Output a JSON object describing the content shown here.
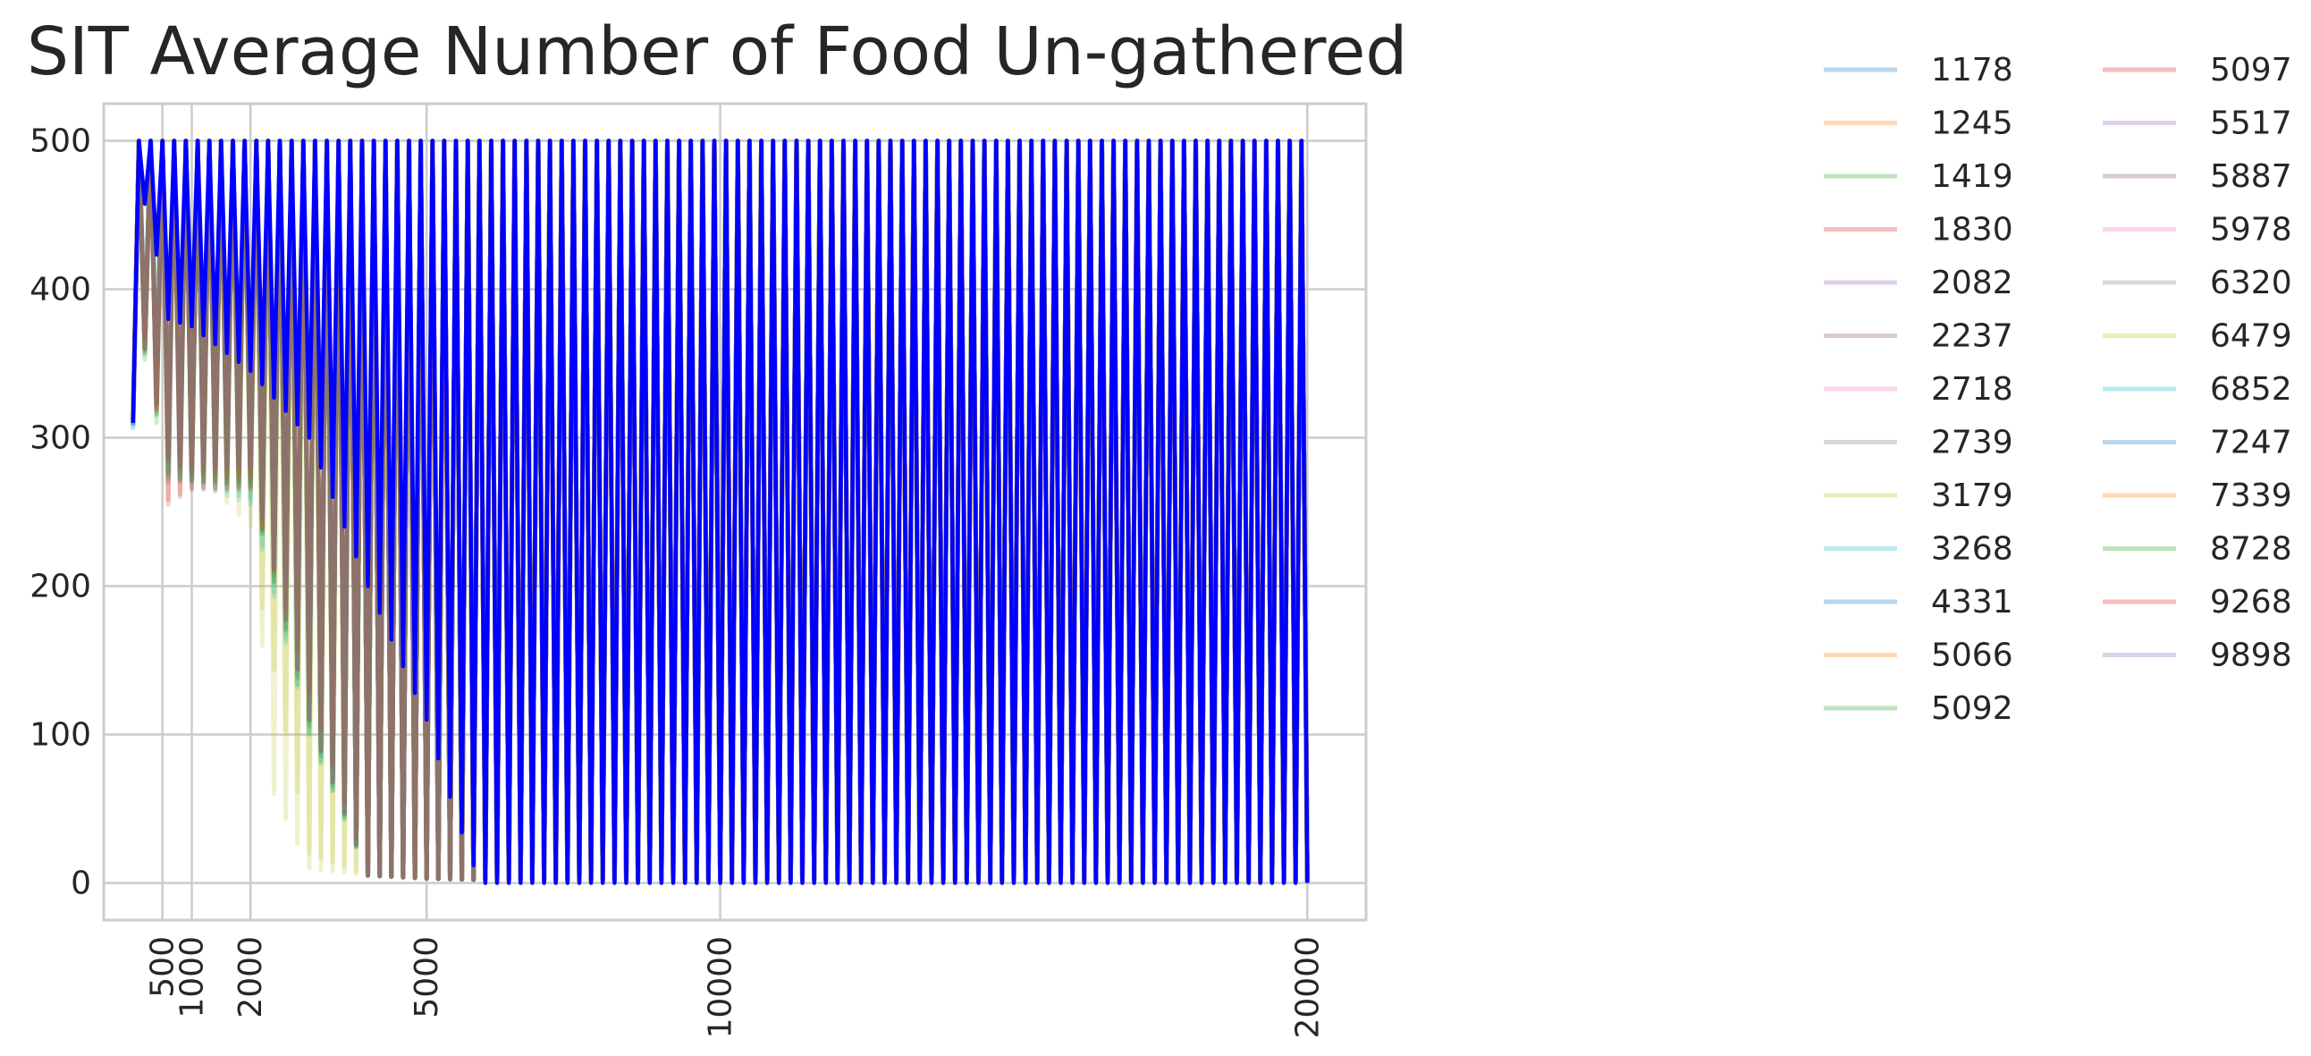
{
  "chart_data": {
    "type": "line",
    "title": "SIT Average Number of Food Un-gathered",
    "xlabel": "",
    "ylabel": "",
    "xlim": [
      -500,
      21000
    ],
    "ylim": [
      -25,
      525
    ],
    "x_ticks": [
      500,
      1000,
      2000,
      5000,
      10000,
      20000
    ],
    "x_tick_labels": [
      "500",
      "1000",
      "2000",
      "5000",
      "10000",
      "20000"
    ],
    "y_ticks": [
      0,
      100,
      200,
      300,
      400,
      500
    ],
    "y_tick_labels": [
      "0",
      "100",
      "200",
      "300",
      "400",
      "500"
    ],
    "grid": true,
    "legend_position": "outside-right",
    "legend_columns": 2,
    "oscillation_period": 200,
    "series_colors": [
      "#1f77b4",
      "#ff7f0e",
      "#2ca02c",
      "#d62728",
      "#9467bd",
      "#8c564b",
      "#e377c2",
      "#7f7f7f",
      "#bcbd22",
      "#17becf"
    ],
    "series": [
      {
        "name": "1178",
        "x": [
          0,
          100,
          300,
          600,
          1000,
          2000,
          3000,
          4000,
          5000,
          6000,
          10000,
          20000
        ],
        "low": [
          310,
          380,
          340,
          290,
          280,
          280,
          110,
          5,
          3,
          2,
          2,
          1
        ],
        "high": [
          310,
          500,
          500,
          500,
          500,
          500,
          500,
          500,
          500,
          500,
          500,
          500
        ]
      },
      {
        "name": "1245",
        "x": [
          0,
          100,
          300,
          600,
          1000,
          2000,
          3000,
          4000,
          5000,
          6000,
          10000,
          20000
        ],
        "low": [
          312,
          385,
          345,
          295,
          285,
          275,
          120,
          6,
          3,
          2,
          2,
          1
        ],
        "high": [
          312,
          500,
          500,
          500,
          500,
          500,
          500,
          500,
          500,
          500,
          500,
          500
        ]
      },
      {
        "name": "1419",
        "x": [
          0,
          100,
          300,
          600,
          1000,
          2000,
          3000,
          4000,
          5000,
          6000,
          10000,
          20000
        ],
        "low": [
          308,
          375,
          330,
          270,
          270,
          270,
          100,
          5,
          3,
          2,
          2,
          1
        ],
        "high": [
          308,
          500,
          500,
          500,
          500,
          500,
          500,
          500,
          500,
          500,
          500,
          500
        ]
      },
      {
        "name": "1830",
        "x": [
          0,
          100,
          300,
          600,
          1000,
          2000,
          3000,
          4000,
          5000,
          6000,
          10000,
          20000
        ],
        "low": [
          315,
          390,
          350,
          255,
          265,
          265,
          130,
          6,
          3,
          2,
          2,
          1
        ],
        "high": [
          315,
          500,
          500,
          500,
          500,
          500,
          500,
          500,
          500,
          500,
          500,
          500
        ]
      },
      {
        "name": "2082",
        "x": [
          0,
          100,
          300,
          600,
          1000,
          2000,
          3000,
          4000,
          5000,
          6000,
          10000,
          20000
        ],
        "low": [
          310,
          380,
          340,
          290,
          280,
          280,
          110,
          5,
          3,
          2,
          2,
          1
        ],
        "high": [
          310,
          500,
          500,
          500,
          500,
          500,
          500,
          500,
          500,
          500,
          500,
          500
        ]
      },
      {
        "name": "2237",
        "x": [
          0,
          100,
          300,
          600,
          1000,
          2000,
          3000,
          4000,
          5000,
          6000,
          10000,
          20000
        ],
        "low": [
          311,
          382,
          342,
          285,
          278,
          272,
          115,
          5,
          3,
          2,
          2,
          1
        ],
        "high": [
          311,
          500,
          500,
          500,
          500,
          500,
          500,
          500,
          500,
          500,
          500,
          500
        ]
      },
      {
        "name": "2718",
        "x": [
          0,
          100,
          300,
          600,
          1000,
          2000,
          3000,
          4000,
          5000,
          6000,
          10000,
          20000
        ],
        "low": [
          309,
          378,
          338,
          280,
          275,
          270,
          105,
          5,
          3,
          2,
          2,
          1
        ],
        "high": [
          309,
          500,
          500,
          500,
          500,
          500,
          500,
          500,
          500,
          500,
          500,
          500
        ]
      },
      {
        "name": "2739",
        "x": [
          0,
          100,
          300,
          600,
          1000,
          2000,
          3000,
          4000,
          5000,
          6000,
          10000,
          20000
        ],
        "low": [
          313,
          383,
          343,
          288,
          279,
          276,
          118,
          6,
          3,
          2,
          2,
          1
        ],
        "high": [
          313,
          500,
          500,
          500,
          500,
          500,
          500,
          500,
          500,
          500,
          500,
          500
        ]
      },
      {
        "name": "3179",
        "x": [
          0,
          100,
          300,
          600,
          1000,
          2000,
          2400,
          3000,
          4000,
          5000,
          6000,
          10000,
          20000
        ],
        "low": [
          310,
          380,
          340,
          290,
          280,
          260,
          60,
          10,
          5,
          3,
          2,
          2,
          1
        ],
        "high": [
          310,
          500,
          500,
          500,
          500,
          500,
          500,
          500,
          500,
          500,
          500,
          500,
          500
        ]
      },
      {
        "name": "3268",
        "x": [
          0,
          100,
          300,
          600,
          1000,
          2000,
          3000,
          4000,
          5000,
          6000,
          10000,
          20000
        ],
        "low": [
          305,
          370,
          390,
          275,
          270,
          255,
          100,
          5,
          3,
          2,
          2,
          1
        ],
        "high": [
          305,
          500,
          500,
          500,
          500,
          500,
          500,
          500,
          500,
          500,
          500,
          500
        ]
      },
      {
        "name": "4331",
        "x": [
          0,
          100,
          300,
          600,
          1000,
          2000,
          3000,
          4000,
          5000,
          6000,
          10000,
          20000
        ],
        "low": [
          310,
          380,
          340,
          290,
          280,
          280,
          110,
          5,
          3,
          2,
          2,
          1
        ],
        "high": [
          310,
          500,
          500,
          500,
          500,
          500,
          500,
          500,
          500,
          500,
          500,
          500
        ]
      },
      {
        "name": "5066",
        "x": [
          0,
          100,
          300,
          600,
          1000,
          2000,
          3000,
          4000,
          5000,
          6000,
          10000,
          20000
        ],
        "low": [
          312,
          384,
          344,
          292,
          282,
          278,
          112,
          5,
          3,
          2,
          2,
          1
        ],
        "high": [
          312,
          500,
          500,
          500,
          500,
          500,
          500,
          500,
          500,
          500,
          500,
          500
        ]
      },
      {
        "name": "5092",
        "x": [
          0,
          100,
          300,
          600,
          1000,
          2000,
          3000,
          4000,
          5000,
          6000,
          10000,
          20000
        ],
        "low": [
          308,
          376,
          336,
          275,
          272,
          268,
          108,
          5,
          3,
          2,
          2,
          1
        ],
        "high": [
          308,
          500,
          500,
          500,
          500,
          500,
          500,
          500,
          500,
          500,
          500,
          500
        ]
      },
      {
        "name": "5097",
        "x": [
          0,
          100,
          300,
          600,
          1000,
          2000,
          3000,
          4000,
          5000,
          6000,
          10000,
          20000
        ],
        "low": [
          310,
          380,
          340,
          290,
          280,
          280,
          110,
          5,
          3,
          2,
          2,
          1
        ],
        "high": [
          310,
          500,
          500,
          500,
          500,
          500,
          500,
          500,
          500,
          500,
          500,
          500
        ]
      },
      {
        "name": "5517",
        "x": [
          0,
          100,
          300,
          600,
          1000,
          2000,
          3000,
          4000,
          5000,
          6000,
          10000,
          20000
        ],
        "low": [
          311,
          381,
          341,
          286,
          277,
          273,
          114,
          5,
          3,
          2,
          2,
          1
        ],
        "high": [
          311,
          500,
          500,
          500,
          500,
          500,
          500,
          500,
          500,
          500,
          500,
          500
        ]
      },
      {
        "name": "5887",
        "x": [
          0,
          100,
          300,
          600,
          1000,
          2000,
          3000,
          4000,
          5000,
          6000,
          10000,
          20000
        ],
        "low": [
          309,
          379,
          339,
          284,
          276,
          271,
          112,
          5,
          3,
          2,
          2,
          1
        ],
        "high": [
          309,
          500,
          500,
          500,
          500,
          500,
          500,
          500,
          500,
          500,
          500,
          500
        ]
      },
      {
        "name": "5978",
        "x": [
          0,
          100,
          300,
          600,
          1000,
          2000,
          3000,
          4000,
          5000,
          6000,
          10000,
          20000
        ],
        "low": [
          310,
          380,
          340,
          290,
          280,
          280,
          110,
          5,
          3,
          2,
          2,
          1
        ],
        "high": [
          310,
          500,
          500,
          500,
          500,
          500,
          500,
          500,
          500,
          500,
          500,
          500
        ]
      },
      {
        "name": "6320",
        "x": [
          0,
          100,
          300,
          600,
          1000,
          2000,
          3000,
          4000,
          5000,
          6000,
          10000,
          20000
        ],
        "low": [
          312,
          383,
          343,
          289,
          279,
          277,
          116,
          5,
          3,
          2,
          2,
          1
        ],
        "high": [
          312,
          500,
          500,
          500,
          500,
          500,
          500,
          500,
          500,
          500,
          500,
          500
        ]
      },
      {
        "name": "6479",
        "x": [
          0,
          100,
          300,
          600,
          1000,
          2000,
          2200,
          3000,
          4000,
          5000,
          6000,
          10000,
          20000
        ],
        "low": [
          310,
          380,
          340,
          290,
          280,
          240,
          185,
          20,
          5,
          3,
          2,
          2,
          1
        ],
        "high": [
          310,
          500,
          500,
          500,
          500,
          500,
          500,
          500,
          500,
          500,
          500,
          500,
          500
        ]
      },
      {
        "name": "6852",
        "x": [
          0,
          100,
          300,
          600,
          1000,
          2000,
          3000,
          4000,
          5000,
          6000,
          10000,
          20000
        ],
        "low": [
          306,
          372,
          392,
          278,
          272,
          258,
          102,
          5,
          3,
          2,
          2,
          1
        ],
        "high": [
          306,
          500,
          500,
          500,
          500,
          500,
          500,
          500,
          500,
          500,
          500,
          500
        ]
      },
      {
        "name": "7247",
        "x": [
          0,
          100,
          300,
          600,
          1000,
          2000,
          3000,
          4000,
          5000,
          6000,
          10000,
          20000
        ],
        "low": [
          310,
          380,
          340,
          290,
          280,
          280,
          110,
          5,
          3,
          2,
          2,
          1
        ],
        "high": [
          310,
          500,
          500,
          500,
          500,
          500,
          500,
          500,
          500,
          500,
          500,
          500
        ]
      },
      {
        "name": "7339",
        "x": [
          0,
          100,
          300,
          600,
          1000,
          2000,
          3000,
          4000,
          5000,
          6000,
          10000,
          20000
        ],
        "low": [
          311,
          382,
          342,
          287,
          278,
          274,
          113,
          5,
          3,
          2,
          2,
          1
        ],
        "high": [
          311,
          500,
          500,
          500,
          500,
          500,
          500,
          500,
          500,
          500,
          500,
          500
        ]
      },
      {
        "name": "8728",
        "x": [
          0,
          100,
          300,
          600,
          1000,
          2000,
          3000,
          4000,
          5000,
          6000,
          10000,
          20000
        ],
        "low": [
          308,
          377,
          337,
          272,
          271,
          267,
          106,
          5,
          3,
          2,
          2,
          1
        ],
        "high": [
          308,
          500,
          500,
          500,
          500,
          500,
          500,
          500,
          500,
          500,
          500,
          500
        ]
      },
      {
        "name": "9268",
        "x": [
          0,
          100,
          300,
          600,
          1000,
          2000,
          3000,
          4000,
          5000,
          6000,
          10000,
          20000
        ],
        "low": [
          314,
          388,
          348,
          258,
          266,
          266,
          128,
          6,
          3,
          2,
          2,
          1
        ],
        "high": [
          314,
          500,
          500,
          500,
          500,
          500,
          500,
          500,
          500,
          500,
          500,
          500
        ]
      },
      {
        "name": "9898",
        "x": [
          0,
          100,
          300,
          600,
          1000,
          2000,
          3000,
          4000,
          5000,
          6000,
          10000,
          20000
        ],
        "low": [
          310,
          380,
          340,
          290,
          280,
          280,
          110,
          5,
          3,
          2,
          2,
          1
        ],
        "high": [
          310,
          500,
          500,
          500,
          500,
          500,
          500,
          500,
          500,
          500,
          500,
          500
        ]
      }
    ],
    "highlight_series": {
      "color": "#0000ff",
      "x": [
        0,
        100,
        300,
        600,
        1000,
        2000,
        3000,
        4000,
        5000,
        5500,
        5800,
        6000,
        10000,
        20000
      ],
      "low": [
        310,
        470,
        445,
        380,
        375,
        345,
        300,
        200,
        110,
        45,
        12,
        0,
        0,
        0
      ],
      "high": [
        310,
        500,
        500,
        500,
        500,
        500,
        500,
        500,
        500,
        500,
        500,
        500,
        500,
        500
      ]
    }
  }
}
